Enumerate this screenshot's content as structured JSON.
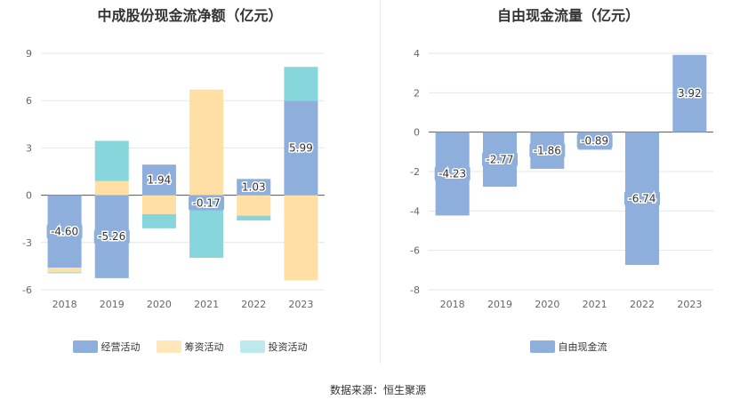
{
  "chart_data": [
    {
      "type": "bar",
      "stacked": true,
      "title": "中成股份现金流净额（亿元）",
      "categories": [
        "2018",
        "2019",
        "2020",
        "2021",
        "2022",
        "2023"
      ],
      "ylim": [
        -6,
        9
      ],
      "yticks": [
        "-6",
        "-3",
        "0",
        "3",
        "6",
        "9"
      ],
      "series": [
        {
          "name": "经营活动",
          "color": "#8eaedc",
          "values": [
            -4.6,
            -5.26,
            1.94,
            -0.17,
            1.03,
            5.99
          ]
        },
        {
          "name": "筹资活动",
          "color": "#ffdfa3",
          "values": [
            -0.3,
            0.9,
            -1.2,
            6.7,
            -1.3,
            -5.4
          ]
        },
        {
          "name": "投资活动",
          "color": "#87d6dc",
          "values": [
            -0.05,
            2.55,
            -0.9,
            -3.8,
            -0.3,
            2.15
          ]
        }
      ],
      "data_labels": [
        "-4.60",
        "-5.26",
        "1.94",
        "-0.17",
        "1.03",
        "5.99"
      ]
    },
    {
      "type": "bar",
      "title": "自由现金流量（亿元）",
      "categories": [
        "2018",
        "2019",
        "2020",
        "2021",
        "2022",
        "2023"
      ],
      "ylim": [
        -8,
        4
      ],
      "yticks": [
        "-8",
        "-6",
        "-4",
        "-2",
        "0",
        "2",
        "4"
      ],
      "series": [
        {
          "name": "自由现金流",
          "color": "#8eaedc",
          "values": [
            -4.23,
            -2.77,
            -1.86,
            -0.89,
            -6.74,
            3.92
          ]
        }
      ],
      "data_labels": [
        "-4.23",
        "-2.77",
        "-1.86",
        "-0.89",
        "-6.74",
        "3.92"
      ]
    }
  ],
  "source": "数据来源：恒生聚源"
}
